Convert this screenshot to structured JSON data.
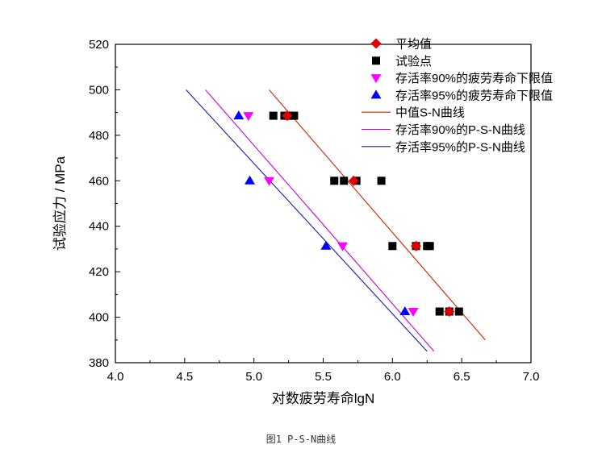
{
  "caption": "图1 P-S-N曲线",
  "chart_data": {
    "type": "scatter",
    "title": "",
    "xlabel": "对数疲劳寿命lgN",
    "ylabel": "试验应力 / MPa",
    "xlim": [
      4.0,
      7.0
    ],
    "ylim": [
      380,
      520
    ],
    "xticks": [
      "4.0",
      "4.5",
      "5.0",
      "5.5",
      "6.0",
      "6.5",
      "7.0"
    ],
    "yticks": [
      "380",
      "400",
      "420",
      "440",
      "460",
      "480",
      "500",
      "520"
    ],
    "grid": false,
    "legend_position": "top-right",
    "series": [
      {
        "name": "平均值",
        "kind": "scatter",
        "marker": "diamond",
        "color": "#e00000",
        "points": [
          [
            5.24,
            488.6
          ],
          [
            5.72,
            460.0
          ],
          [
            6.17,
            431.3
          ],
          [
            6.41,
            402.5
          ]
        ]
      },
      {
        "name": "试验点",
        "kind": "scatter",
        "marker": "square",
        "color": "#000000",
        "points": [
          [
            5.14,
            488.6
          ],
          [
            5.22,
            488.6
          ],
          [
            5.25,
            488.6
          ],
          [
            5.27,
            488.6
          ],
          [
            5.29,
            488.6
          ],
          [
            5.58,
            460.0
          ],
          [
            5.65,
            460.0
          ],
          [
            5.74,
            460.0
          ],
          [
            5.92,
            460.0
          ],
          [
            6.0,
            431.3
          ],
          [
            6.17,
            431.3
          ],
          [
            6.25,
            431.3
          ],
          [
            6.27,
            431.3
          ],
          [
            6.34,
            402.5
          ],
          [
            6.41,
            402.5
          ],
          [
            6.48,
            402.5
          ]
        ]
      },
      {
        "name": "存活率90%的疲劳寿命下限值",
        "kind": "scatter",
        "marker": "triangle-down",
        "color": "#ff00ff",
        "points": [
          [
            4.96,
            488.6
          ],
          [
            5.11,
            460.0
          ],
          [
            5.64,
            431.3
          ],
          [
            6.15,
            402.5
          ]
        ]
      },
      {
        "name": "存活率95%的疲劳寿命下限值",
        "kind": "scatter",
        "marker": "triangle-up",
        "color": "#0000ff",
        "points": [
          [
            4.89,
            488.6
          ],
          [
            4.97,
            460.0
          ],
          [
            5.52,
            431.3
          ],
          [
            6.09,
            402.5
          ]
        ]
      },
      {
        "name": "中值S-N曲线",
        "kind": "line",
        "color": "#cc2200",
        "points": [
          [
            5.11,
            500.0
          ],
          [
            6.67,
            390.0
          ]
        ]
      },
      {
        "name": "存活率90%的P-S-N曲线",
        "kind": "line",
        "color": "#cc00cc",
        "points": [
          [
            4.65,
            500.0
          ],
          [
            6.3,
            385.0
          ]
        ]
      },
      {
        "name": "存活率95%的P-S-N曲线",
        "kind": "line",
        "color": "#1a1aa0",
        "points": [
          [
            4.51,
            500.0
          ],
          [
            6.25,
            385.0
          ]
        ]
      }
    ]
  }
}
